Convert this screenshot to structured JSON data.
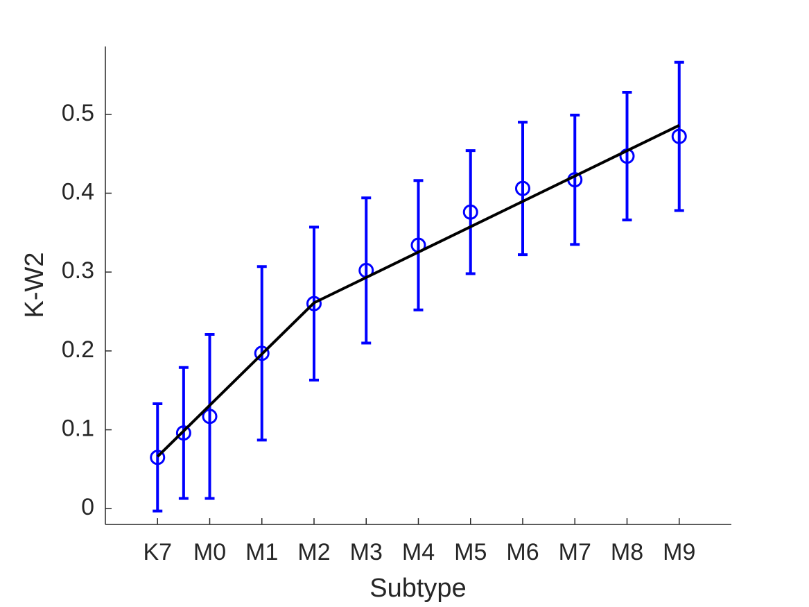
{
  "chart_data": {
    "type": "errorbar",
    "xlabel": "Subtype",
    "ylabel": "K-W2",
    "xlim": [
      0,
      12
    ],
    "ylim": [
      -0.02,
      0.586
    ],
    "xticks": [
      {
        "value": 1,
        "label": "K7"
      },
      {
        "value": 2,
        "label": "M0"
      },
      {
        "value": 3,
        "label": "M1"
      },
      {
        "value": 4,
        "label": "M2"
      },
      {
        "value": 5,
        "label": "M3"
      },
      {
        "value": 6,
        "label": "M4"
      },
      {
        "value": 7,
        "label": "M5"
      },
      {
        "value": 8,
        "label": "M6"
      },
      {
        "value": 9,
        "label": "M7"
      },
      {
        "value": 10,
        "label": "M8"
      },
      {
        "value": 11,
        "label": "M9"
      }
    ],
    "yticks": [
      0,
      0.1,
      0.2,
      0.3,
      0.4,
      0.5
    ],
    "series": [
      {
        "style": "markers",
        "color": "#0000ff",
        "x": [
          1,
          1.5,
          2,
          3,
          4,
          5,
          6,
          7,
          8,
          9,
          10,
          11
        ],
        "values": [
          0.065,
          0.096,
          0.117,
          0.197,
          0.26,
          0.302,
          0.334,
          0.376,
          0.406,
          0.417,
          0.447,
          0.472
        ],
        "errors": [
          0.068,
          0.083,
          0.104,
          0.11,
          0.097,
          0.092,
          0.082,
          0.078,
          0.084,
          0.082,
          0.081,
          0.094
        ]
      },
      {
        "style": "line",
        "color": "#000000",
        "x": [
          1,
          4,
          11
        ],
        "values": [
          0.066,
          0.261,
          0.486
        ]
      }
    ]
  }
}
